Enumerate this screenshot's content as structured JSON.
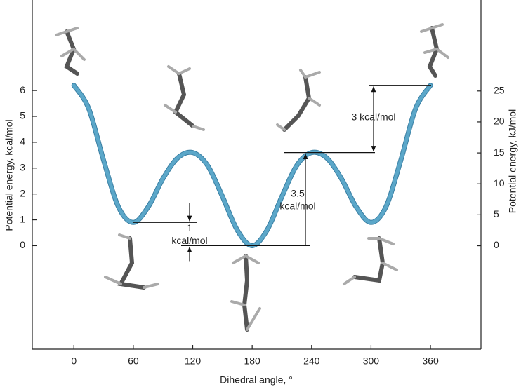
{
  "chart_data": {
    "type": "line",
    "x_label": "Dihedral angle, °",
    "y_label": "Potential energy, kcal/mol",
    "y2_label": "Potential energy, kJ/mol",
    "x": [
      0,
      15,
      30,
      45,
      60,
      75,
      90,
      105,
      120,
      135,
      150,
      165,
      180,
      195,
      210,
      225,
      240,
      255,
      270,
      285,
      300,
      315,
      330,
      345,
      360
    ],
    "series": [
      {
        "color": "#5ba7c9",
        "values": [
          6.2,
          5.3,
          3.3,
          1.5,
          0.9,
          1.5,
          2.6,
          3.4,
          3.6,
          3.1,
          1.9,
          0.6,
          0,
          0.6,
          1.9,
          3.1,
          3.6,
          3.4,
          2.6,
          1.5,
          0.9,
          1.5,
          3.3,
          5.3,
          6.2
        ]
      }
    ],
    "xlim": [
      -42,
      411
    ],
    "xticks": [
      0,
      60,
      120,
      180,
      240,
      300,
      360
    ],
    "ylim": [
      -4,
      9.5
    ],
    "yticks": [
      0,
      1,
      2,
      3,
      4,
      5,
      6
    ],
    "y2lim": [
      -16.7,
      39.7
    ],
    "y2ticks": [
      0,
      5,
      10,
      15,
      20,
      25
    ],
    "annotations": [
      [
        "1",
        "kcal/mol"
      ],
      [
        "3.5",
        "kcal/mol"
      ],
      [
        "3 kcal/mol"
      ]
    ]
  }
}
